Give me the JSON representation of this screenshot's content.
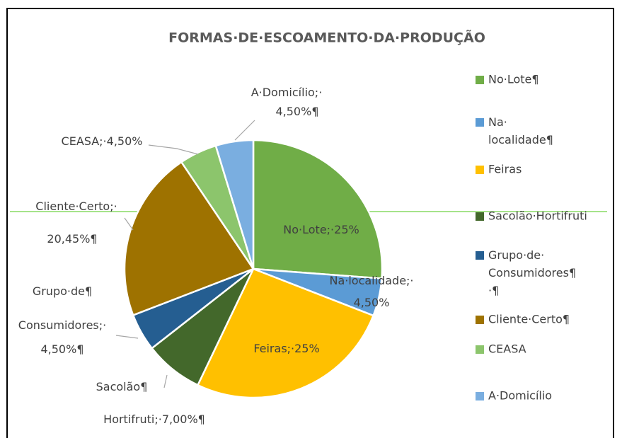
{
  "chart_data": {
    "type": "pie",
    "title": "FORMAS·DE·ESCOAMENTO·DA·PRODUÇÃO",
    "categories": [
      "No·Lote¶",
      "Na·\nlocalidade¶",
      "Feiras",
      "Sacolão·Hortifruti",
      "Grupo·de·\nConsumidores¶\n·¶",
      "Cliente·Certo¶",
      "CEASA",
      "A·Domicílio"
    ],
    "values": [
      25,
      4.5,
      25,
      7,
      4.5,
      20.45,
      4.5,
      4.5
    ],
    "value_labels": [
      "No·Lote;·25%",
      "Na·localidade;·\n4,50%",
      "Feiras;·25%",
      "Sacolão¶\nHortifruti;·7,00%¶",
      "Grupo·de¶\nConsumidores;·\n4,50%¶",
      "Cliente·Certo;·\n20,45%¶",
      "CEASA;·4,50%",
      "A·Domicílio;·\n4,50%¶"
    ],
    "colors": [
      "#70ad47",
      "#5b9bd5",
      "#ffc000",
      "#43682b",
      "#255e91",
      "#9e7200",
      "#8cc56c",
      "#7aaee0"
    ],
    "legend": "right"
  }
}
